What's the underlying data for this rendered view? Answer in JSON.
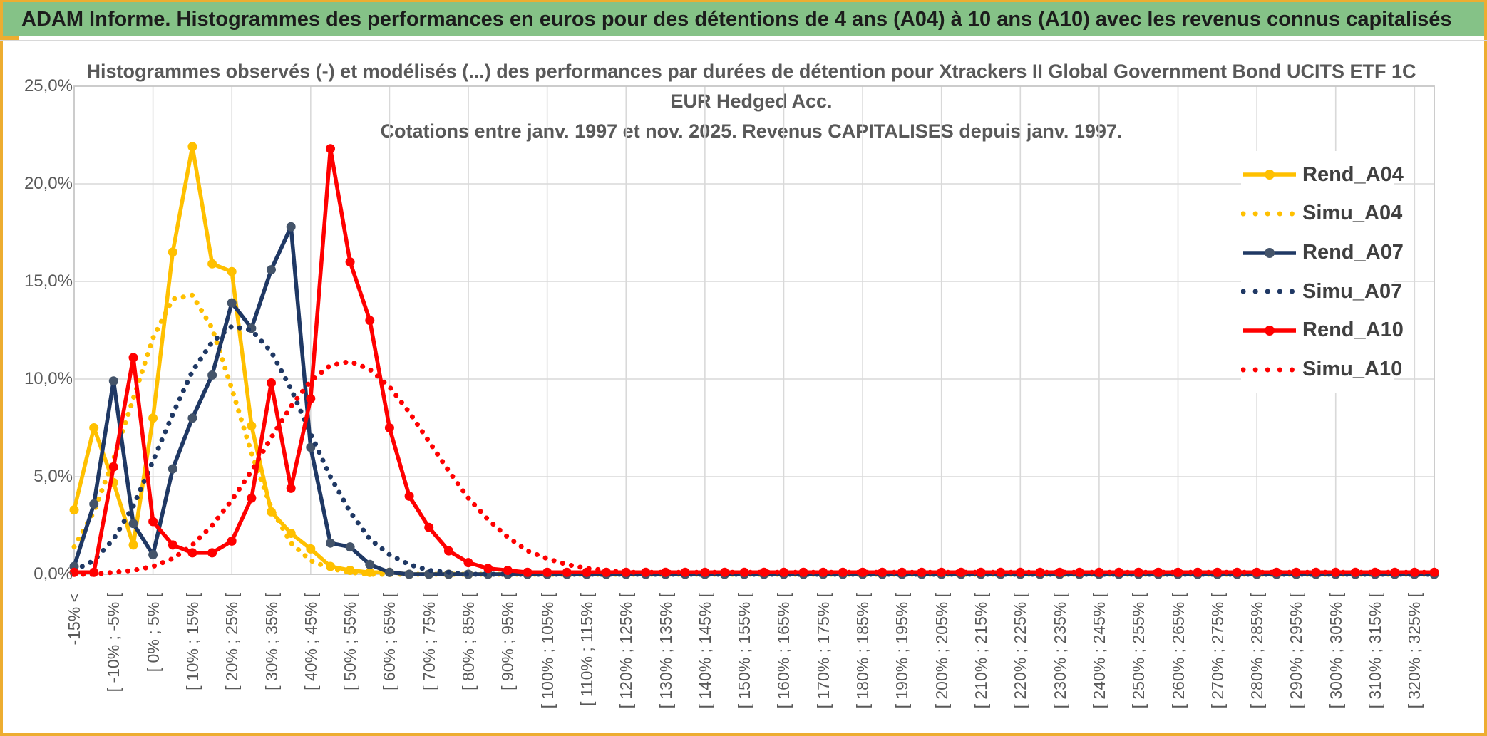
{
  "window": {
    "header_title": "ADAM Informe. Histogrammes des performances en euros pour des détentions de 4 ans (A04) à 10 ans (A10) avec les revenus connus capitalisés"
  },
  "colors": {
    "header_green": "#85C287",
    "frame_gold": "#EDAD31",
    "gold_series": "#FFC000",
    "navy_series": "#1F3864",
    "navy_marker": "#44546A",
    "red_series": "#FF0000",
    "gridline": "#D9D9D9",
    "plot_border": "#C6C6C6",
    "axis_text": "#595959",
    "title_text": "#595959",
    "legend_text": "#404040"
  },
  "chart_data": {
    "type": "line",
    "title_lines": [
      "Histogrammes observés (-) et modélisés (...) des performances par durées de détention pour Xtrackers II Global Government Bond UCITS ETF 1C",
      "EUR Hedged Acc.",
      "Cotations entre janv. 1997 et nov. 2025. Revenus CAPITALISES depuis janv. 1997."
    ],
    "ylabel": "",
    "xlabel": "",
    "ylim": [
      0,
      25
    ],
    "y_tick_labels": [
      "0,0%",
      "5,0%",
      "10,0%",
      "15,0%",
      "20,0%",
      "25,0%"
    ],
    "y_tick_values": [
      0,
      5,
      10,
      15,
      20,
      25
    ],
    "n_points": 70,
    "bin_width_pct": 5,
    "x_labels_every_n_points": 2,
    "x_tick_labels": [
      "-15% <",
      "[ -10% ; -5% [",
      "[ 0% ; 5% [",
      "[ 10% ; 15% [",
      "[ 20% ; 25% [",
      "[ 30% ; 35% [",
      "[ 40% ; 45% [",
      "[ 50% ; 55% [",
      "[ 60% ; 65% [",
      "[ 70% ; 75% [",
      "[ 80% ; 85% [",
      "[ 90% ; 95% [",
      "[ 100% ; 105% [",
      "[ 110% ; 115% [",
      "[ 120% ; 125% [",
      "[ 130% ; 135% [",
      "[ 140% ; 145% [",
      "[ 150% ; 155% [",
      "[ 160% ; 165% [",
      "[ 170% ; 175% [",
      "[ 180% ; 185% [",
      "[ 190% ; 195% [",
      "[ 200% ; 205% [",
      "[ 210% ; 215% [",
      "[ 220% ; 225% [",
      "[ 230% ; 235% [",
      "[ 240% ; 245% [",
      "[ 250% ; 255% [",
      "[ 260% ; 265% [",
      "[ 270% ; 275% [",
      "[ 280% ; 285% [",
      "[ 290% ; 295% [",
      "[ 300% ; 305% [",
      "[ 310% ; 315% [",
      "[ 320% ; 325% ["
    ],
    "legend_position": "right",
    "grid": true,
    "series": [
      {
        "name": "Rend_A04",
        "style": "solid",
        "color": "#FFC000",
        "marker_color": "#FFC000",
        "tail_fill": 0,
        "values": [
          3.3,
          7.5,
          4.7,
          1.5,
          8.0,
          16.5,
          21.9,
          15.9,
          15.5,
          7.6,
          3.2,
          2.1,
          1.3,
          0.4,
          0.2,
          0.1,
          0.1
        ]
      },
      {
        "name": "Simu_A04",
        "style": "dotted",
        "color": "#FFC000",
        "tail_fill": 0,
        "values": [
          1.4,
          3.2,
          5.9,
          9.0,
          12.1,
          14.1,
          14.3,
          12.6,
          9.5,
          6.2,
          3.4,
          1.6,
          0.7,
          0.3,
          0.1
        ]
      },
      {
        "name": "Rend_A07",
        "style": "solid",
        "color": "#1F3864",
        "marker_color": "#44546A",
        "tail_fill": 0,
        "values": [
          0.4,
          3.6,
          9.9,
          2.6,
          1.0,
          5.4,
          8.0,
          10.2,
          13.9,
          12.6,
          15.6,
          17.8,
          6.5,
          1.6,
          1.4,
          0.5,
          0.1
        ]
      },
      {
        "name": "Simu_A07",
        "style": "dotted",
        "color": "#1F3864",
        "tail_fill": 0,
        "values": [
          0.2,
          0.7,
          1.8,
          3.5,
          5.8,
          8.2,
          10.4,
          11.9,
          12.7,
          12.5,
          11.4,
          9.5,
          7.2,
          5.0,
          3.2,
          1.8,
          1.0,
          0.5,
          0.2,
          0.1
        ]
      },
      {
        "name": "Rend_A10",
        "style": "solid",
        "color": "#FF0000",
        "marker_color": "#FF0000",
        "tail_fill": 0.1,
        "values": [
          0.1,
          0.1,
          5.5,
          11.1,
          2.7,
          1.5,
          1.1,
          1.1,
          1.7,
          3.9,
          9.8,
          4.4,
          9.0,
          21.8,
          16.0,
          13.0,
          7.5,
          4.0,
          2.4,
          1.2,
          0.6,
          0.3,
          0.2
        ]
      },
      {
        "name": "Simu_A10",
        "style": "dotted",
        "color": "#FF0000",
        "tail_fill": 0.1,
        "values": [
          0,
          0,
          0.1,
          0.2,
          0.4,
          0.8,
          1.5,
          2.5,
          3.8,
          5.3,
          7.0,
          8.6,
          9.9,
          10.7,
          10.9,
          10.5,
          9.6,
          8.3,
          6.8,
          5.3,
          3.9,
          2.8,
          1.9,
          1.2,
          0.8,
          0.5,
          0.3,
          0.2,
          0.1
        ]
      }
    ]
  }
}
